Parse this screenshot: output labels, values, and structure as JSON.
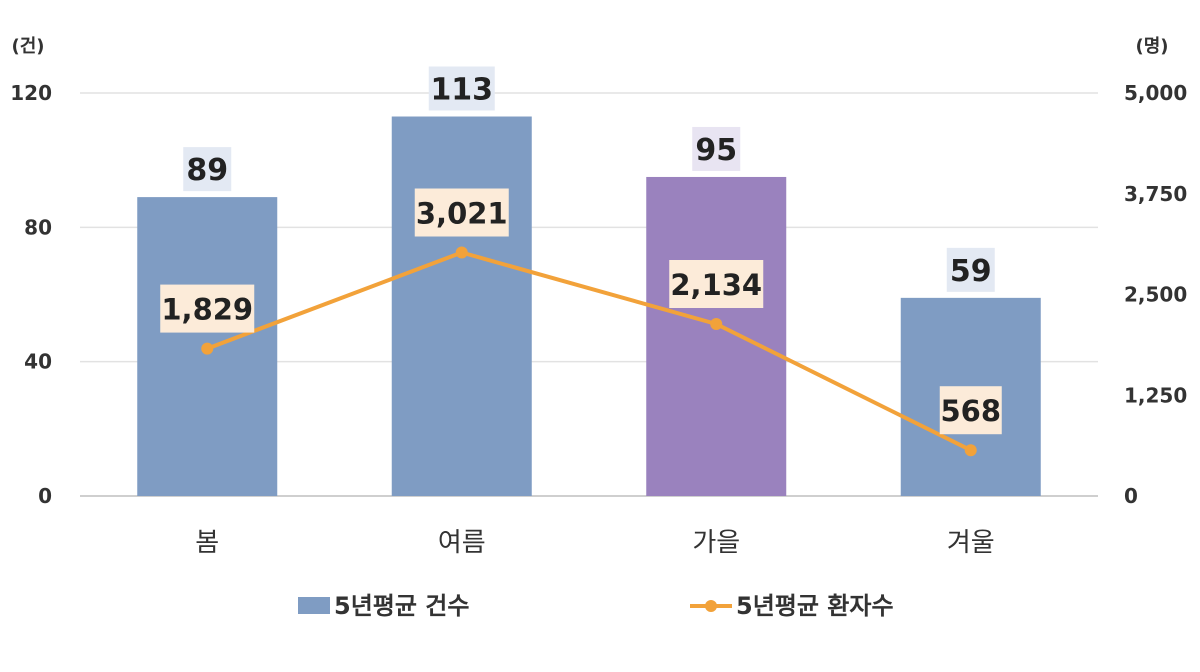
{
  "chart_data": {
    "type": "bar",
    "categories": [
      "봄",
      "여름",
      "가을",
      "겨울"
    ],
    "left_axis": {
      "unit": "(건)",
      "ylim": [
        0,
        120
      ],
      "ticks": [
        "0",
        "40",
        "80",
        "120"
      ]
    },
    "right_axis": {
      "unit": "(명)",
      "ylim": [
        0,
        5000
      ],
      "ticks": [
        "0",
        "1,250",
        "2,500",
        "3,750",
        "5,000"
      ]
    },
    "series": [
      {
        "name": "5년평균 건수",
        "type": "bar",
        "axis": "left",
        "values": [
          89,
          113,
          95,
          59
        ],
        "labels": [
          "89",
          "113",
          "95",
          "59"
        ],
        "colors": [
          "#7F9CC3",
          "#7F9CC3",
          "#9A82BE",
          "#7F9CC3"
        ]
      },
      {
        "name": "5년평균 환자수",
        "type": "line",
        "axis": "right",
        "values": [
          1829,
          3021,
          2134,
          568
        ],
        "labels": [
          "1,829",
          "3,021",
          "2,134",
          "568"
        ],
        "color": "#F2A23A"
      }
    ],
    "grid": true,
    "legend": "bottom"
  }
}
